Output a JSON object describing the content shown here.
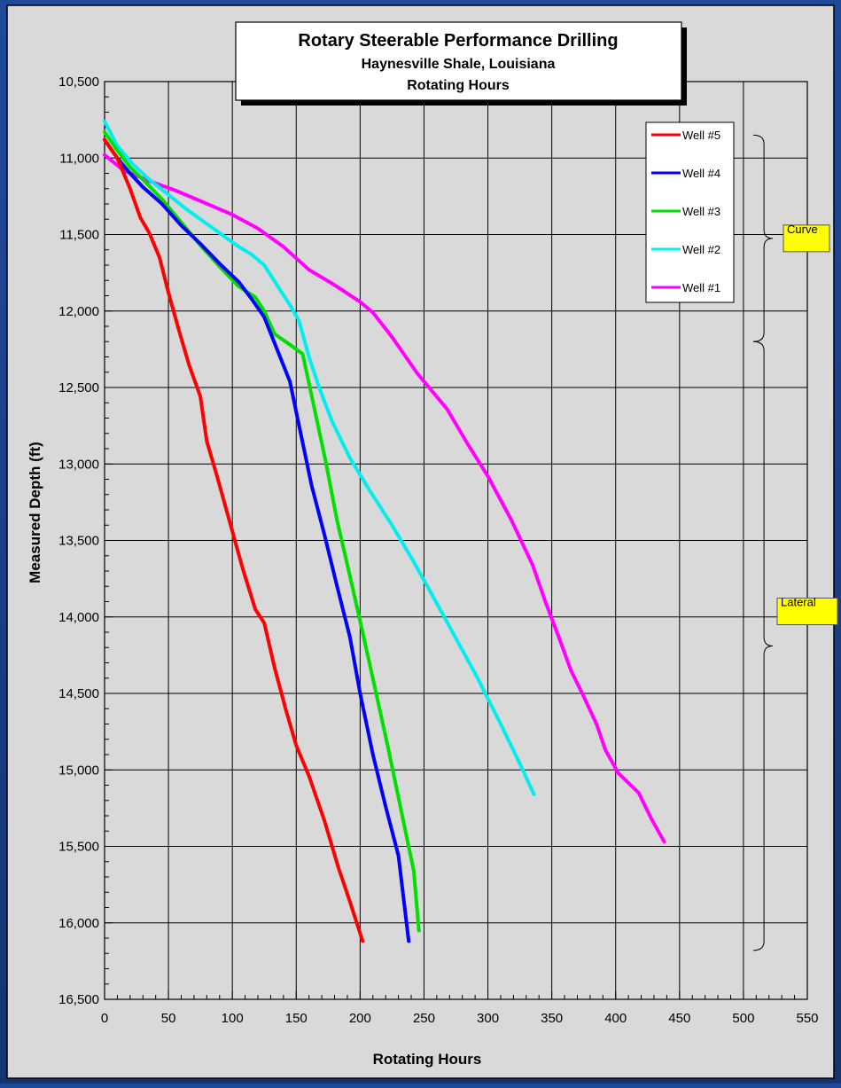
{
  "chart_data": {
    "type": "line",
    "title": "Rotary Steerable Performance Drilling",
    "subtitle_lines": [
      "Haynesville Shale, Louisiana",
      "Rotating Hours"
    ],
    "xlabel": "Rotating Hours",
    "ylabel": "Measured Depth (ft)",
    "xlim": [
      0,
      550
    ],
    "ylim": [
      10500,
      16500
    ],
    "y_inverted": true,
    "x_ticks": [
      0,
      50,
      100,
      150,
      200,
      250,
      300,
      350,
      400,
      450,
      500,
      550
    ],
    "x_tick_labels": [
      "0",
      "50",
      "100",
      "150",
      "200",
      "250",
      "300",
      "350",
      "400",
      "450",
      "500",
      "550"
    ],
    "y_ticks": [
      10500,
      11000,
      11500,
      12000,
      12500,
      13000,
      13500,
      14000,
      14500,
      15000,
      15500,
      16000,
      16500
    ],
    "y_tick_labels": [
      "10,500",
      "11,000",
      "11,500",
      "12,000",
      "12,500",
      "13,000",
      "13,500",
      "14,000",
      "14,500",
      "15,000",
      "15,500",
      "16,000",
      "16,500"
    ],
    "grid": true,
    "legend_position": "top-right",
    "series": [
      {
        "name": "Well #5",
        "color": "#ff0000",
        "x": [
          0,
          10,
          20,
          28,
          35,
          43,
          50,
          58,
          66,
          75,
          80,
          88,
          98,
          108,
          118,
          125,
          133,
          142,
          150,
          160,
          172,
          183,
          192,
          202
        ],
        "y": [
          10880,
          11000,
          11200,
          11390,
          11490,
          11650,
          11880,
          12120,
          12350,
          12560,
          12850,
          13080,
          13380,
          13680,
          13950,
          14040,
          14330,
          14610,
          14840,
          15040,
          15330,
          15640,
          15860,
          16120
        ]
      },
      {
        "name": "Well #4",
        "color": "#0000ff",
        "x": [
          0,
          10,
          20,
          30,
          45,
          60,
          75,
          90,
          105,
          115,
          125,
          135,
          145,
          153,
          162,
          172,
          182,
          192,
          200,
          210,
          220,
          230,
          238
        ],
        "y": [
          10880,
          11000,
          11100,
          11190,
          11300,
          11440,
          11560,
          11690,
          11810,
          11920,
          12040,
          12250,
          12460,
          12780,
          13140,
          13460,
          13800,
          14130,
          14500,
          14900,
          15240,
          15560,
          16120
        ]
      },
      {
        "name": "Well #3",
        "color": "#00e000",
        "x": [
          0,
          10,
          20,
          30,
          45,
          60,
          75,
          90,
          105,
          118,
          125,
          133,
          145,
          155,
          163,
          173,
          182,
          192,
          202,
          212,
          222,
          232,
          242,
          246
        ],
        "y": [
          10830,
          10950,
          11060,
          11140,
          11270,
          11420,
          11570,
          11710,
          11840,
          11910,
          12000,
          12150,
          12220,
          12280,
          12590,
          12980,
          13370,
          13730,
          14100,
          14480,
          14860,
          15260,
          15660,
          16050
        ]
      },
      {
        "name": "Well #2",
        "color": "#00eeee",
        "x": [
          0,
          10,
          22,
          35,
          50,
          65,
          80,
          95,
          105,
          115,
          125,
          135,
          145,
          152,
          160,
          168,
          178,
          192,
          208,
          225,
          242,
          258,
          275,
          292,
          310,
          325,
          336
        ],
        "y": [
          10760,
          10920,
          11040,
          11140,
          11240,
          11340,
          11430,
          11520,
          11580,
          11630,
          11700,
          11830,
          11960,
          12060,
          12300,
          12500,
          12720,
          12960,
          13180,
          13400,
          13640,
          13880,
          14140,
          14400,
          14700,
          14960,
          15160
        ]
      },
      {
        "name": "Well #1",
        "color": "#ff00ff",
        "x": [
          0,
          15,
          35,
          55,
          75,
          100,
          120,
          140,
          160,
          180,
          200,
          210,
          225,
          245,
          268,
          285,
          300,
          318,
          335,
          345,
          355,
          365,
          375,
          385,
          392,
          402,
          418,
          428,
          438
        ],
        "y": [
          10980,
          11080,
          11150,
          11210,
          11280,
          11370,
          11460,
          11580,
          11730,
          11830,
          11940,
          12010,
          12170,
          12410,
          12640,
          12880,
          13080,
          13360,
          13660,
          13900,
          14120,
          14350,
          14520,
          14700,
          14870,
          15020,
          15150,
          15320,
          15470
        ]
      }
    ],
    "annotations": [
      {
        "label": "Curve",
        "y_range": [
          10850,
          12200
        ]
      },
      {
        "label": "Lateral",
        "y_range": [
          12200,
          16180
        ]
      }
    ]
  }
}
